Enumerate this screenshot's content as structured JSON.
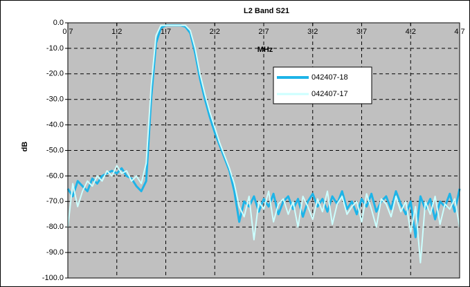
{
  "chart_data": {
    "type": "line",
    "title": "L2 Band S21",
    "x_label": "MHz",
    "y_label": "dB",
    "x": [
      0.7,
      0.75,
      0.8,
      0.85,
      0.9,
      0.95,
      1.0,
      1.05,
      1.1,
      1.15,
      1.2,
      1.25,
      1.3,
      1.35,
      1.4,
      1.45,
      1.5,
      1.55,
      1.6,
      1.65,
      1.7,
      1.75,
      1.8,
      1.85,
      1.9,
      1.95,
      2.0,
      2.05,
      2.1,
      2.15,
      2.2,
      2.25,
      2.3,
      2.35,
      2.4,
      2.45,
      2.5,
      2.55,
      2.6,
      2.65,
      2.7,
      2.75,
      2.8,
      2.85,
      2.9,
      2.95,
      3.0,
      3.05,
      3.1,
      3.15,
      3.2,
      3.25,
      3.3,
      3.35,
      3.4,
      3.45,
      3.5,
      3.55,
      3.6,
      3.65,
      3.7,
      3.75,
      3.8,
      3.85,
      3.9,
      3.95,
      4.0,
      4.05,
      4.1,
      4.15,
      4.2,
      4.25,
      4.3,
      4.35,
      4.4,
      4.45,
      4.5,
      4.55,
      4.6,
      4.65,
      4.7
    ],
    "series": [
      {
        "name": "042407-18",
        "color": "#1db4e8",
        "width": 3,
        "values": [
          -65,
          -68,
          -62,
          -64,
          -66,
          -61,
          -63,
          -60,
          -59,
          -58,
          -59,
          -57,
          -60,
          -61,
          -64,
          -66,
          -62,
          -30,
          -8,
          -2,
          -1,
          -1,
          -1,
          -1,
          -1.5,
          -4,
          -12,
          -22,
          -30,
          -37,
          -43,
          -48,
          -53,
          -58,
          -66,
          -78,
          -70,
          -72,
          -68,
          -74,
          -69,
          -72,
          -67,
          -75,
          -70,
          -68,
          -73,
          -69,
          -76,
          -70,
          -67,
          -72,
          -69,
          -74,
          -68,
          -71,
          -66,
          -73,
          -70,
          -75,
          -69,
          -72,
          -67,
          -74,
          -70,
          -68,
          -73,
          -66,
          -71,
          -75,
          -70,
          -84,
          -68,
          -73,
          -69,
          -77,
          -70,
          -72,
          -67,
          -74,
          -65
        ]
      },
      {
        "name": "042407-17",
        "color": "#ccffff",
        "width": 2,
        "values": [
          -80,
          -63,
          -72,
          -66,
          -62,
          -64,
          -60,
          -62,
          -58,
          -60,
          -56,
          -59,
          -58,
          -62,
          -60,
          -63,
          -55,
          -25,
          -5,
          -1,
          -1,
          -1,
          -1,
          -1,
          -1,
          -3,
          -10,
          -20,
          -28,
          -35,
          -41,
          -47,
          -52,
          -57,
          -63,
          -72,
          -76,
          -68,
          -85,
          -70,
          -73,
          -66,
          -78,
          -71,
          -69,
          -75,
          -70,
          -80,
          -68,
          -72,
          -77,
          -69,
          -74,
          -66,
          -79,
          -71,
          -68,
          -75,
          -72,
          -70,
          -78,
          -67,
          -73,
          -80,
          -69,
          -71,
          -76,
          -68,
          -74,
          -70,
          -82,
          -72,
          -94,
          -70,
          -75,
          -68,
          -79,
          -71,
          -73,
          -69,
          -80
        ]
      }
    ],
    "xlim": [
      0.7,
      4.7
    ],
    "xticks": [
      0.7,
      1.2,
      1.7,
      2.2,
      2.7,
      3.2,
      3.7,
      4.2,
      4.7
    ],
    "ylim": [
      -100,
      0
    ],
    "yticks": [
      {
        "value": 0,
        "label": "0.0"
      },
      {
        "value": -10,
        "label": "-10.0"
      },
      {
        "value": -20,
        "label": "-20.0"
      },
      {
        "value": -30,
        "label": "-30.0"
      },
      {
        "value": -40,
        "label": "-40.0"
      },
      {
        "value": -50,
        "label": "-50.0"
      },
      {
        "value": -60,
        "label": "-60.0"
      },
      {
        "value": -70,
        "label": "-70.0"
      },
      {
        "value": -80,
        "label": "-80.0"
      },
      {
        "value": -90,
        "label": "-90.0"
      },
      {
        "value": -100,
        "label": "-100.0"
      }
    ],
    "grid": true,
    "background": "#c0c0c0"
  }
}
